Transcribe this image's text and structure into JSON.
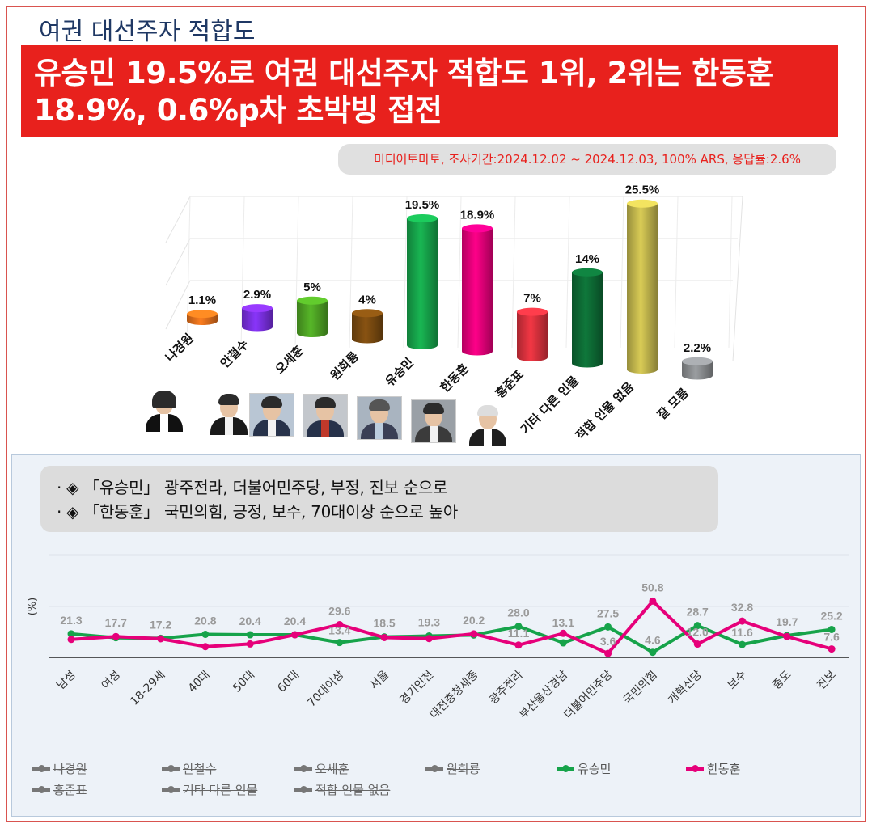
{
  "topic": "여권 대선주자 적합도",
  "headline": {
    "line1": "유승민 19.5%로 여권 대선주자 적합도 1위, 2위는 한동훈",
    "line2": "18.9%, 0.6%p차 초박빙 접전"
  },
  "source": "미디어토마토, 조사기간:2024.12.02 ~ 2024.12.03, 100% ARS, 응답률:2.6%",
  "notes": [
    "· ◈ 「유승민」 광주전라, 더불어민주당, 부정, 진보 순으로",
    "· ◈ 「한동훈」 국민의힘, 긍정, 보수, 70대이상 순으로 높아"
  ],
  "chart_data": [
    {
      "type": "bar",
      "title": "",
      "categories": [
        "나경원",
        "안철수",
        "오세훈",
        "원희룡",
        "유승민",
        "한동훈",
        "홍준표",
        "기타 다른 인물",
        "적합 인물 없음",
        "잘 모름"
      ],
      "values": [
        1.1,
        2.9,
        5,
        4,
        19.5,
        18.9,
        7,
        14,
        25.5,
        2.2
      ],
      "value_labels": [
        "1.1%",
        "2.9%",
        "5%",
        "4%",
        "19.5%",
        "18.9%",
        "7%",
        "14%",
        "25.5%",
        "2.2%"
      ],
      "colors": [
        "#e1701c",
        "#7a2fe0",
        "#4ea324",
        "#7a4a10",
        "#16a34a",
        "#e6007a",
        "#d9313d",
        "#0d6b35",
        "#c2b64d",
        "#8a8d90"
      ],
      "ylim": [
        0,
        30
      ],
      "grid": true
    },
    {
      "type": "line",
      "ylabel": "(%)",
      "categories": [
        "남성",
        "여성",
        "18-29세",
        "40대",
        "50대",
        "60대",
        "70대이상",
        "서울",
        "경기인천",
        "대전충청세종",
        "광주전라",
        "부산울산경남",
        "더불어민주당",
        "국민의힘",
        "개혁신당",
        "보수",
        "중도",
        "진보"
      ],
      "series": [
        {
          "name": "유승민",
          "color": "#16a34a",
          "values": [
            21.3,
            17.7,
            17.2,
            20.8,
            20.4,
            20.4,
            13.4,
            18.5,
            19.3,
            20.2,
            28.0,
            13.1,
            27.5,
            4.6,
            28.7,
            11.6,
            19.7,
            25.2
          ]
        },
        {
          "name": "한동훈",
          "color": "#e6007a",
          "values": [
            16.2,
            18.8,
            16.8,
            9.7,
            12.1,
            20.4,
            29.6,
            17.9,
            17.0,
            21.3,
            11.1,
            21.7,
            3.6,
            50.8,
            12.0,
            32.8,
            18.8,
            7.6
          ]
        }
      ],
      "value_labels": [
        "21.3",
        "17.7",
        "17.2",
        "20.8",
        "20.4",
        "20.4",
        "29.6",
        "18.5",
        "19.3",
        "20.2",
        "28.0",
        "27.5",
        "50.8",
        "28.7",
        "32.8",
        "19.7",
        "25.2"
      ],
      "value_labels_lower": [
        "13.4",
        "11.1",
        "13.1",
        "3.6",
        "4.6",
        "12.0",
        "11.6",
        "7.6"
      ],
      "ylim": [
        0,
        70
      ],
      "legend": {
        "placement": "bottom",
        "entries": [
          {
            "name": "나경원",
            "active": false
          },
          {
            "name": "안철수",
            "active": false
          },
          {
            "name": "오세훈",
            "active": false
          },
          {
            "name": "원희룡",
            "active": false
          },
          {
            "name": "유승민",
            "active": true,
            "color": "#16a34a"
          },
          {
            "name": "한동훈",
            "active": true,
            "color": "#e6007a"
          },
          {
            "name": "홍준표",
            "active": false
          },
          {
            "name": "기타 다른 인물",
            "active": false
          },
          {
            "name": "적합 인물 없음",
            "active": false
          }
        ]
      }
    }
  ]
}
